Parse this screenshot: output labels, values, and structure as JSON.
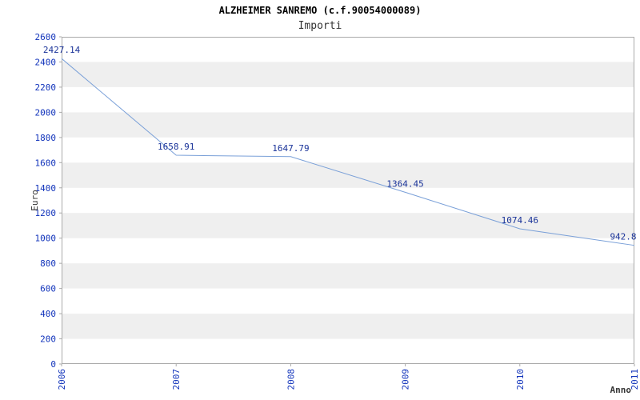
{
  "header": {
    "title": "ALZHEIMER SANREMO (c.f.90054000089)",
    "subtitle": "Importi"
  },
  "chart_data": {
    "type": "line",
    "title": "ALZHEIMER SANREMO (c.f.90054000089)",
    "subtitle": "Importi",
    "categories": [
      "2006",
      "2007",
      "2008",
      "2009",
      "2010",
      "2011"
    ],
    "series": [
      {
        "name": "Importi",
        "values": [
          2427.14,
          1658.91,
          1647.79,
          1364.45,
          1074.46,
          942.8
        ]
      }
    ],
    "point_labels": [
      "2427.14",
      "1658.91",
      "1647.79",
      "1364.45",
      "1074.46",
      "942.8"
    ],
    "xlabel": "Anno",
    "ylabel": "Euro",
    "ylim": [
      0,
      2600
    ],
    "yticks": [
      0,
      200,
      400,
      600,
      800,
      1000,
      1200,
      1400,
      1600,
      1800,
      2000,
      2200,
      2400,
      2600
    ],
    "grid": "alternating-horizontal-bands",
    "legend": "none",
    "colors": {
      "line": "#7aa0d8",
      "tick_label": "#1133bb",
      "point_label": "#1a3399",
      "band": "#efefef",
      "plot_border": "#aaaaaa",
      "axis_text": "#333333",
      "title": "#000000"
    }
  }
}
